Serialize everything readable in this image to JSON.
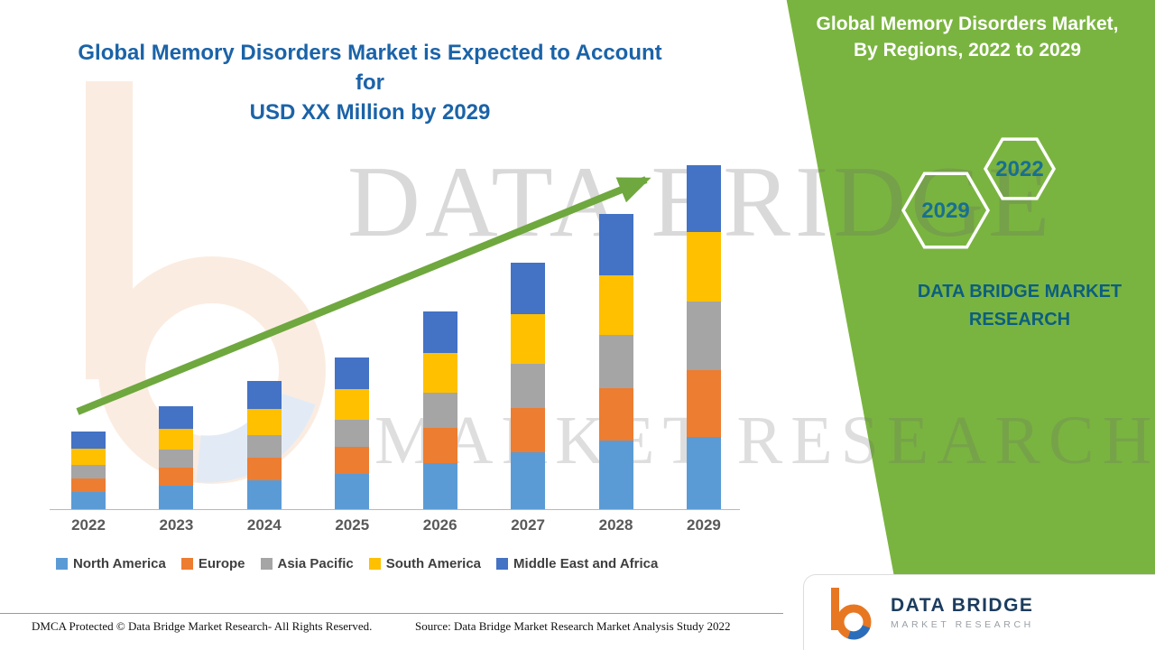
{
  "page": {
    "background": "#ffffff",
    "accent_green": "#7AB440",
    "title_blue": "#1B63A8",
    "arrow_green": "#6FA83E"
  },
  "chart_section": {
    "title_line1": "Global Memory Disorders Market is Expected to Account for",
    "title_line2": "USD XX Million by 2029"
  },
  "right_panel": {
    "title_line1": "Global Memory Disorders Market,",
    "title_line2": "By Regions, 2022 to 2029",
    "hexagons": [
      {
        "label": "2029"
      },
      {
        "label": "2022"
      }
    ],
    "brand_line1": "DATA BRIDGE MARKET",
    "brand_line2": "RESEARCH"
  },
  "watermark": {
    "line1": "DATA BRIDGE",
    "line2": "MARKET RESEARCH"
  },
  "footer": {
    "dmca": "DMCA Protected © Data Bridge Market Research- All Rights Reserved.",
    "source": "Source: Data Bridge Market Research Market Analysis Study 2022"
  },
  "logo_card": {
    "brand": "DATA BRIDGE",
    "sub": "MARKET RESEARCH"
  },
  "chart_data": {
    "type": "bar",
    "stacked": true,
    "title": "Global Memory Disorders Market is Expected to Account for USD XX Million by 2029",
    "xlabel": "",
    "ylabel": "",
    "values_note": "actual values undisclosed (USD XX Million); series values are relative estimates read from bar heights",
    "categories": [
      "2022",
      "2023",
      "2024",
      "2025",
      "2026",
      "2027",
      "2028",
      "2029"
    ],
    "series": [
      {
        "name": "North America",
        "color": "#5B9BD5",
        "values": [
          20,
          27,
          33,
          40,
          52,
          64,
          77,
          81
        ]
      },
      {
        "name": "Europe",
        "color": "#ED7D31",
        "values": [
          15,
          20,
          25,
          30,
          39,
          49,
          58,
          74
        ]
      },
      {
        "name": "Asia Pacific",
        "color": "#A5A5A5",
        "values": [
          15,
          20,
          25,
          30,
          39,
          49,
          59,
          76
        ]
      },
      {
        "name": "South America",
        "color": "#FFC000",
        "values": [
          18,
          23,
          29,
          34,
          44,
          55,
          66,
          77
        ]
      },
      {
        "name": "Middle East and Africa",
        "color": "#4472C4",
        "values": [
          19,
          25,
          31,
          35,
          46,
          57,
          68,
          74
        ]
      }
    ],
    "totals": [
      87,
      115,
      143,
      169,
      220,
      274,
      328,
      382
    ],
    "ylim": [
      0,
      400
    ],
    "grid": false,
    "legend_position": "bottom",
    "trend_arrow": true
  }
}
